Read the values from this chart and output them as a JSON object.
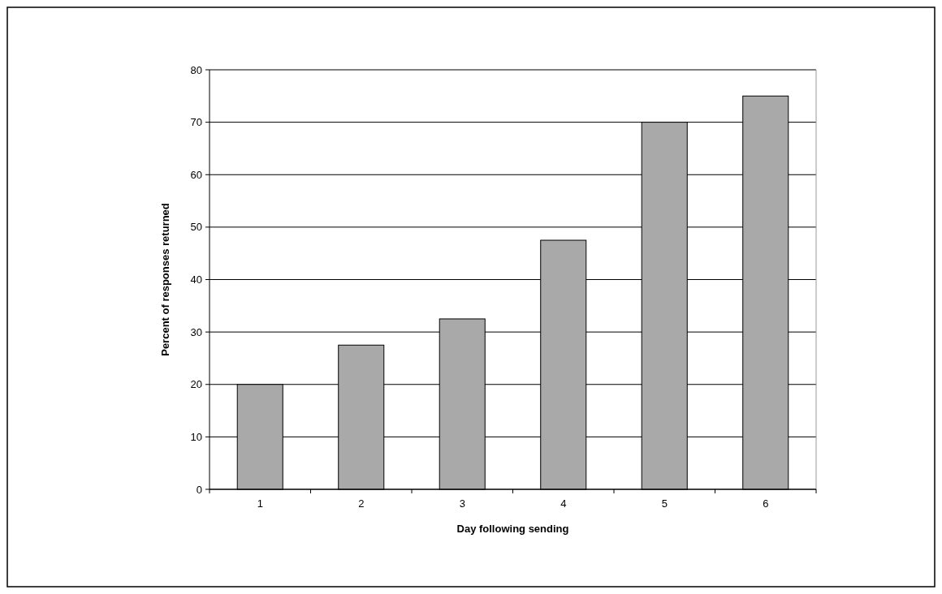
{
  "chart_data": {
    "type": "bar",
    "xlabel": "Day following sending",
    "ylabel": "Percent of responses returned",
    "categories": [
      "1",
      "2",
      "3",
      "4",
      "5",
      "6"
    ],
    "values": [
      20,
      27.5,
      32.5,
      47.5,
      70,
      75
    ],
    "color": "#a9a9a9",
    "ylim": [
      0,
      80
    ],
    "yticks": [
      0,
      10,
      20,
      30,
      40,
      50,
      60,
      70,
      80
    ],
    "grid": "y"
  }
}
